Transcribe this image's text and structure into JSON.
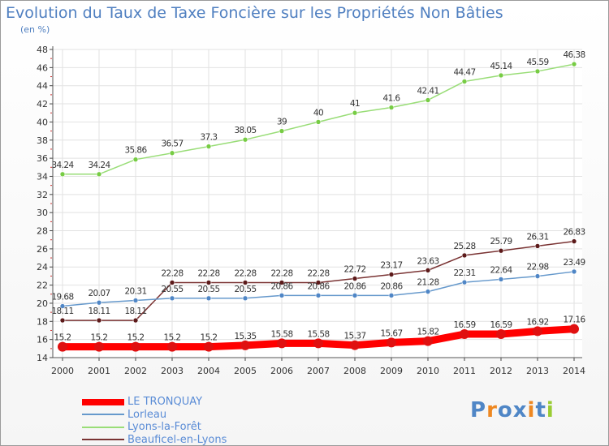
{
  "chart_data": {
    "type": "line",
    "title": "Evolution du Taux de Taxe Foncière sur les Propriétés Non Bâties",
    "unit_label": "(en %)",
    "ylim": [
      14,
      48
    ],
    "yticks": [
      14,
      16,
      18,
      20,
      22,
      24,
      26,
      28,
      30,
      32,
      34,
      36,
      38,
      40,
      42,
      44,
      46,
      48
    ],
    "categories": [
      "2000",
      "2001",
      "2002",
      "2003",
      "2004",
      "2005",
      "2006",
      "2007",
      "2008",
      "2009",
      "2010",
      "2011",
      "2012",
      "2013",
      "2014"
    ],
    "grid": true,
    "legend_position": "bottom-left",
    "series": [
      {
        "name": "LE TRONQUAY",
        "color": "#ff0000",
        "marker": "#e01010",
        "width": 9,
        "values": [
          15.2,
          15.2,
          15.2,
          15.2,
          15.2,
          15.35,
          15.58,
          15.58,
          15.37,
          15.67,
          15.82,
          16.59,
          16.59,
          16.92,
          17.16
        ],
        "labels": [
          "15.2",
          "15.2",
          "15.2",
          "15.2",
          "15.2",
          "15.35",
          "15.58",
          "15.58",
          "15.37",
          "15.67",
          "15.82",
          "16.59",
          "16.59",
          "16.92",
          "17.16"
        ]
      },
      {
        "name": "Lorleau",
        "color": "#6699cc",
        "marker": "#4f86c6",
        "width": 1.5,
        "values": [
          19.68,
          20.07,
          20.31,
          20.55,
          20.55,
          20.55,
          20.86,
          20.86,
          20.86,
          20.86,
          21.28,
          22.31,
          22.64,
          22.98,
          23.49
        ],
        "labels": [
          "19.68",
          "20.07",
          "20.31",
          "20.55",
          "20.55",
          "20.55",
          "20.86",
          "20.86",
          "20.86",
          "20.86",
          "21.28",
          "22.31",
          "22.64",
          "22.98",
          "23.49"
        ]
      },
      {
        "name": "Lyons-la-Forêt",
        "color": "#99dd77",
        "marker": "#77cc44",
        "width": 1.5,
        "values": [
          34.24,
          34.24,
          35.86,
          36.57,
          37.3,
          38.05,
          39,
          40,
          41,
          41.6,
          42.41,
          44.47,
          45.14,
          45.59,
          46.38
        ],
        "labels": [
          "34.24",
          "34.24",
          "35.86",
          "36.57",
          "37.3",
          "38.05",
          "39",
          "40",
          "41",
          "41.6",
          "42.41",
          "44.47",
          "45.14",
          "45.59",
          "46.38"
        ]
      },
      {
        "name": "Beauficel-en-Lyons",
        "color": "#7a3333",
        "marker": "#5c1a1a",
        "width": 1.5,
        "values": [
          18.11,
          18.11,
          18.11,
          22.28,
          22.28,
          22.28,
          22.28,
          22.28,
          22.72,
          23.17,
          23.63,
          25.28,
          25.79,
          26.31,
          26.83
        ],
        "labels": [
          "18.11",
          "18.11",
          "18.11",
          "22.28",
          "22.28",
          "22.28",
          "22.28",
          "22.28",
          "22.72",
          "23.17",
          "23.63",
          "25.28",
          "25.79",
          "26.31",
          "26.83"
        ]
      }
    ]
  },
  "logo": {
    "text": "Proxiti",
    "letters": [
      "P",
      "r",
      "o",
      "x",
      "i",
      "t",
      "i"
    ],
    "colors": [
      "#4f86c6",
      "#ee8822",
      "#4f86c6",
      "#4f86c6",
      "#ee8822",
      "#4f86c6",
      "#99cc33"
    ]
  }
}
